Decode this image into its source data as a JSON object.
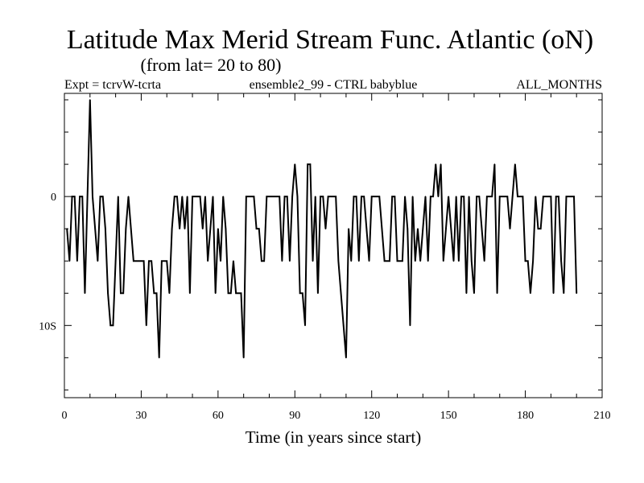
{
  "chart_data": {
    "type": "line",
    "title": "Latitude Max Merid Stream Func. Atlantic (oN)",
    "subtitle": "(from lat= 20 to 80)",
    "header_left": "Expt = tcrvW-tcrta",
    "header_center": "ensemble2_99 - CTRL babyblue",
    "header_right": "ALL_MONTHS",
    "xlabel": "Time (in years since start)",
    "ylabel": "",
    "xlim": [
      0,
      210
    ],
    "ylim": [
      -15.6,
      8
    ],
    "x_ticks": [
      0,
      30,
      60,
      90,
      120,
      150,
      180,
      210
    ],
    "x_tick_labels": [
      "0",
      "30",
      "60",
      "90",
      "120",
      "150",
      "180",
      "210"
    ],
    "y_ticks": [
      0,
      -10
    ],
    "y_tick_labels": [
      "0",
      "10S"
    ],
    "x_start": 1,
    "x_step": 1,
    "values": [
      -2.5,
      -5,
      0,
      0,
      -5,
      0,
      0,
      -7.5,
      0,
      7.5,
      0,
      -2.5,
      -5,
      0,
      0,
      -2.5,
      -7.5,
      -10,
      -10,
      -5,
      0,
      -7.5,
      -7.5,
      -2.5,
      0,
      -2.5,
      -5,
      -5,
      -5,
      -5,
      -5,
      -10,
      -5,
      -5,
      -7.5,
      -7.5,
      -12.5,
      -5,
      -5,
      -5,
      -7.5,
      -2.5,
      0,
      0,
      -2.5,
      0,
      -2.5,
      0,
      -7.5,
      0,
      0,
      0,
      0,
      -2.5,
      0,
      -5,
      -2.5,
      0,
      -7.5,
      -2.5,
      -5,
      0,
      -2.5,
      -7.5,
      -7.5,
      -5,
      -7.5,
      -7.5,
      -7.5,
      -12.5,
      0,
      0,
      0,
      0,
      -2.5,
      -2.5,
      -5,
      -5,
      0,
      0,
      0,
      0,
      0,
      0,
      -5,
      0,
      0,
      -5,
      0,
      2.5,
      0,
      -7.5,
      -7.5,
      -10,
      2.5,
      2.5,
      -5,
      0,
      -7.5,
      0,
      0,
      -2.5,
      0,
      0,
      0,
      0,
      -5,
      -7.5,
      -10,
      -12.5,
      -2.5,
      -5,
      0,
      0,
      -5,
      0,
      0,
      -2.5,
      -5,
      0,
      0,
      0,
      0,
      -2.5,
      -5,
      -5,
      -5,
      0,
      0,
      -5,
      -5,
      -5,
      0,
      -2.5,
      -10,
      0,
      -5,
      -2.5,
      -5,
      -2.5,
      0,
      -5,
      0,
      0,
      2.5,
      0,
      2.5,
      -5,
      -2.5,
      0,
      -2.5,
      -5,
      0,
      -5,
      0,
      0,
      -7.5,
      0,
      -5,
      -7.5,
      0,
      0,
      -2.5,
      -5,
      0,
      0,
      0,
      2.5,
      -7.5,
      0,
      0,
      0,
      0,
      -2.5,
      0,
      2.5,
      0,
      0,
      0,
      -5,
      -5,
      -7.5,
      -5,
      0,
      -2.5,
      -2.5,
      0,
      0,
      0,
      0,
      -7.5,
      0,
      0,
      -5,
      -7.5,
      0,
      0,
      0,
      0,
      -7.5
    ]
  }
}
